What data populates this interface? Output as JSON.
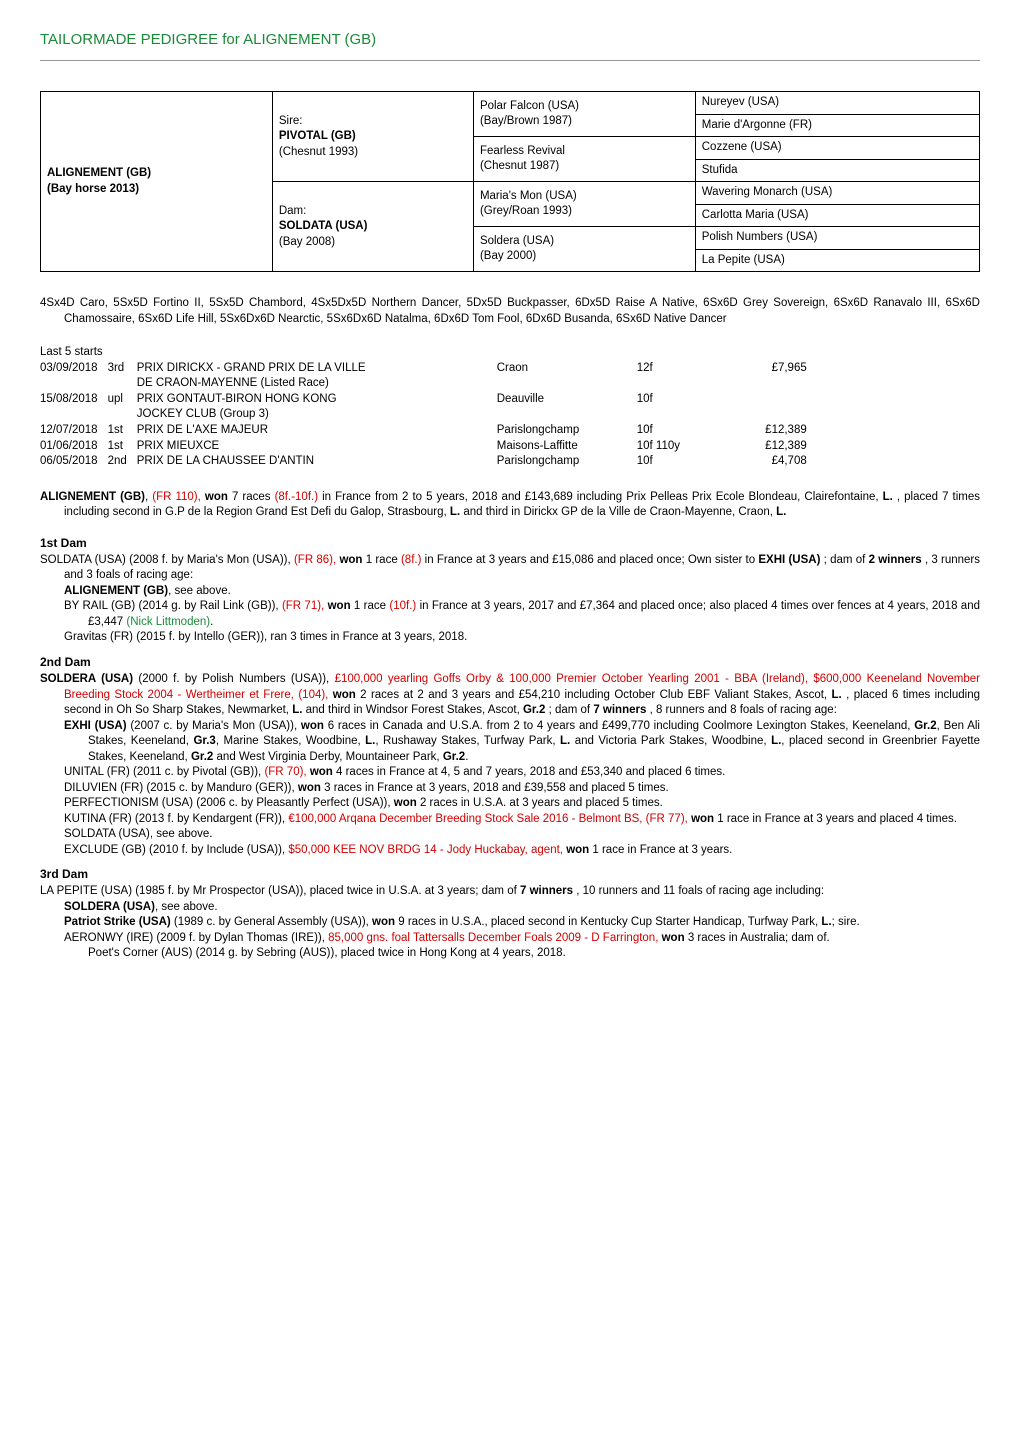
{
  "colors": {
    "red": "#d00000",
    "green": "#1a8a3a",
    "border": "#000000"
  },
  "header": {
    "title": "TAILORMADE PEDIGREE for ALIGNEMENT (GB)"
  },
  "pedigree": {
    "subject": {
      "name": "ALIGNEMENT (GB)",
      "detail": "(Bay horse 2013)"
    },
    "sire": {
      "label": "Sire:",
      "name": "PIVOTAL (GB)",
      "detail": "(Chesnut 1993)",
      "sire": {
        "name": "Polar Falcon (USA)",
        "detail": "(Bay/Brown 1987)",
        "sire": "Nureyev (USA)",
        "dam": "Marie d'Argonne (FR)"
      },
      "dam": {
        "name": "Fearless Revival",
        "detail": "(Chesnut 1987)",
        "sire": "Cozzene (USA)",
        "dam": "Stufida"
      }
    },
    "dam": {
      "label": "Dam:",
      "name": "SOLDATA (USA)",
      "detail": "(Bay 2008)",
      "sire": {
        "name": "Maria's Mon (USA)",
        "detail": "(Grey/Roan 1993)",
        "sire": "Wavering Monarch (USA)",
        "dam": "Carlotta Maria (USA)"
      },
      "dam": {
        "name": "Soldera (USA)",
        "detail": "(Bay 2000)",
        "sire": "Polish Numbers (USA)",
        "dam": "La Pepite (USA)"
      }
    }
  },
  "crosses": "4Sx4D Caro, 5Sx5D Fortino II, 5Sx5D Chambord, 4Sx5Dx5D Northern Dancer, 5Dx5D Buckpasser, 6Dx5D Raise A Native, 6Sx6D Grey Sovereign, 6Sx6D Ranavalo III, 6Sx6D Chamossaire, 6Sx6D Life Hill, 5Sx6Dx6D Nearctic, 5Sx6Dx6D Natalma, 6Dx6D Tom Fool, 6Dx6D Busanda, 6Sx6D Native Dancer",
  "starts": {
    "heading": "Last 5 starts",
    "rows": [
      {
        "date": "03/09/2018",
        "pos": "3rd",
        "race_a": "PRIX DIRICKX - GRAND PRIX DE LA VILLE",
        "race_b": "DE CRAON-MAYENNE (Listed Race)",
        "course": "Craon",
        "dist": "12f",
        "prize": "£7,965"
      },
      {
        "date": "15/08/2018",
        "pos": "upl",
        "race_a": "PRIX GONTAUT-BIRON HONG KONG",
        "race_b": "JOCKEY CLUB (Group 3)",
        "course": "Deauville",
        "dist": "10f",
        "prize": ""
      },
      {
        "date": "12/07/2018",
        "pos": "1st",
        "race_a": "PRIX DE L'AXE MAJEUR",
        "race_b": "",
        "course": "Parislongchamp",
        "dist": "10f",
        "prize": "£12,389"
      },
      {
        "date": "01/06/2018",
        "pos": "1st",
        "race_a": "PRIX MIEUXCE",
        "race_b": "",
        "course": "Maisons-Laffitte",
        "dist": "10f 110y",
        "prize": "£12,389"
      },
      {
        "date": "06/05/2018",
        "pos": "2nd",
        "race_a": "PRIX DE LA CHAUSSEE D'ANTIN",
        "race_b": "",
        "course": "Parislongchamp",
        "dist": "10f",
        "prize": "£4,708"
      }
    ]
  },
  "summary": {
    "name": "ALIGNEMENT (GB)",
    "rating": "(FR 110),",
    "won": "won",
    "dists": "(8f.-10f.)",
    "rest": " in France from 2 to 5 years, 2018 and £143,689 including Prix Pelleas Prix Ecole Blondeau, Clairefontaine, ",
    "L1": "L.",
    "mid": ", placed 7 times including second in G.P de la Region Grand Est Defi du Galop, Strasbourg, ",
    "L2": "L.",
    "mid2": " and third in Dirickx GP de la Ville de Craon-Mayenne, Craon, ",
    "L3": "L."
  },
  "dam1": {
    "heading": "1st Dam",
    "l1a": "SOLDATA (USA) (2008 f. by Maria's Mon (USA)), ",
    "l1rating": "(FR 86),",
    "l1won": " won",
    "l1dist": " (8f.)",
    "l1b": " in France at 3 years and £15,086 and placed once; Own sister to ",
    "l1sis": "EXHI (USA)",
    "l1c": "; dam of ",
    "l12w": "2 winners",
    "l1d": ", 3 runners and 3 foals of racing age:",
    "l2": "ALIGNEMENT (GB)",
    "l2b": ", see above.",
    "l3a": "BY RAIL (GB) (2014 g. by Rail Link (GB)), ",
    "l3rating": "(FR 71),",
    "l3won": " won",
    "l3dist": " (10f.)",
    "l3b": " in France at 3 years, 2017 and £7,364 and placed once; also placed 4 times over fences at 4 years, 2018 and £3,447 ",
    "l3trainer": "(Nick Littmoden)",
    "l3c": ".",
    "l4": "Gravitas (FR) (2015 f. by Intello (GER)), ran 3 times in France at 3 years, 2018."
  },
  "dam2": {
    "heading": "2nd Dam",
    "s1a": "SOLDERA (USA)",
    "s1b": " (2000 f. by Polish Numbers (USA)), ",
    "s1sale": "£100,000 yearling Goffs Orby & 100,000 Premier October Yearling 2001 - BBA (Ireland), $600,000 Keeneland November Breeding Stock 2004 - Wertheimer et Frere, (104),",
    "s1won": " won",
    "s1c": " 2 races at 2 and 3 years and £54,210 including October Club EBF Valiant Stakes, Ascot, ",
    "s1L": "L.",
    "s1d": ", placed 6 times including second in Oh So Sharp Stakes, Newmarket, ",
    "s1L2": "L.",
    "s1e": " and third in Windsor Forest Stakes, Ascot, ",
    "s1G": "Gr.2",
    "s1f": "; dam of ",
    "s17w": "7 winners",
    "s1g": ", 8 runners and 8 foals of racing age:",
    "e1a": "EXHI (USA)",
    "e1b": " (2007 c. by Maria's Mon (USA)), ",
    "e1won": "won",
    "e1c": " 6 races in Canada and U.S.A. from 2 to 4 years and £499,770 including Coolmore Lexington Stakes, Keeneland, ",
    "e1g1": "Gr.2",
    "e1d": ", Ben Ali Stakes, Keeneland, ",
    "e1g2": "Gr.3",
    "e1e": ", Marine Stakes, Woodbine, ",
    "e1L1": "L.",
    "e1f": ", Rushaway Stakes, Turfway Park, ",
    "e1L2": "L.",
    "e1g": " and Victoria Park Stakes, Woodbine, ",
    "e1L3": "L.",
    "e1h": ", placed second in Greenbrier Fayette Stakes, Keeneland, ",
    "e1g3": "Gr.2",
    "e1i": " and West Virginia Derby, Mountaineer Park, ",
    "e1g4": "Gr.2",
    "e1j": ".",
    "u1a": "UNITAL (FR) (2011 c. by Pivotal (GB)), ",
    "u1rating": "(FR 70),",
    "u1won": " won",
    "u1b": " 4 races in France at 4, 5 and 7 years, 2018 and £53,340 and placed 6 times.",
    "d1a": "DILUVIEN (FR) (2015 c. by Manduro (GER)), ",
    "d1won": "won",
    "d1b": " 3 races in France at 3 years, 2018 and £39,558 and placed 5 times.",
    "p1a": "PERFECTIONISM (USA) (2006 c. by Pleasantly Perfect (USA)), ",
    "p1won": "won",
    "p1b": " 2 races in U.S.A. at 3 years and placed 5 times.",
    "k1a": "KUTINA (FR) (2013 f. by Kendargent (FR)), ",
    "k1sale": "€100,000 Arqana December Breeding Stock Sale 2016 - Belmont BS, (FR 77),",
    "k1won": " won",
    "k1b": " 1 race in France at 3 years and placed 4 times.",
    "so1": "SOLDATA (USA), see above.",
    "ex1a": "EXCLUDE (GB) (2010 f. by Include (USA)), ",
    "ex1sale": "$50,000 KEE NOV BRDG 14 - Jody Huckabay, agent,",
    "ex1won": " won",
    "ex1b": " 1 race in France at 3 years."
  },
  "dam3": {
    "heading": "3rd Dam",
    "l1a": "LA PEPITE (USA) (1985 f. by Mr Prospector (USA)), placed twice in U.S.A. at 3 years; dam of ",
    "l17w": "7 winners",
    "l1b": ", 10 runners and 11 foals of racing age including:",
    "s1": "SOLDERA (USA)",
    "s1b": ", see above.",
    "p1a": "Patriot Strike (USA)",
    "p1b": " (1989 c. by General Assembly (USA)), ",
    "p1won": "won",
    "p1c": " 9 races in U.S.A., placed second in Kentucky Cup Starter Handicap, Turfway Park, ",
    "p1L": "L.",
    "p1d": "; sire.",
    "a1a": "AERONWY (IRE) (2009 f. by Dylan Thomas (IRE)), ",
    "a1sale": "85,000 gns. foal Tattersalls December Foals 2009 - D Farrington,",
    "a1won": " won",
    "a1b": " 3 races in Australia; dam of.",
    "pc1": "Poet's Corner (AUS) (2014 g. by Sebring (AUS)), placed twice in Hong Kong at 4 years, 2018."
  }
}
